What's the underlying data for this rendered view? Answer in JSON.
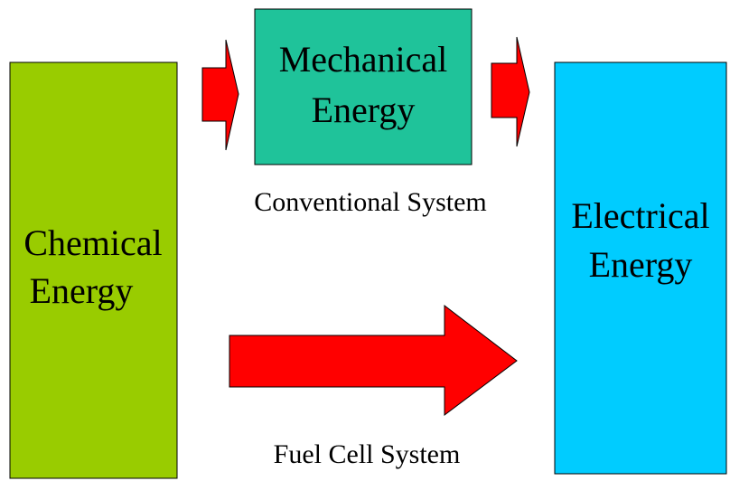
{
  "nodes": [
    {
      "label": [
        "Chemical",
        "Energy"
      ]
    },
    {
      "label": [
        "Mechanical",
        "Energy"
      ]
    },
    {
      "label": [
        "Electrical",
        "Energy"
      ]
    }
  ],
  "labels": [
    "Conventional System",
    "Fuel Cell System"
  ]
}
